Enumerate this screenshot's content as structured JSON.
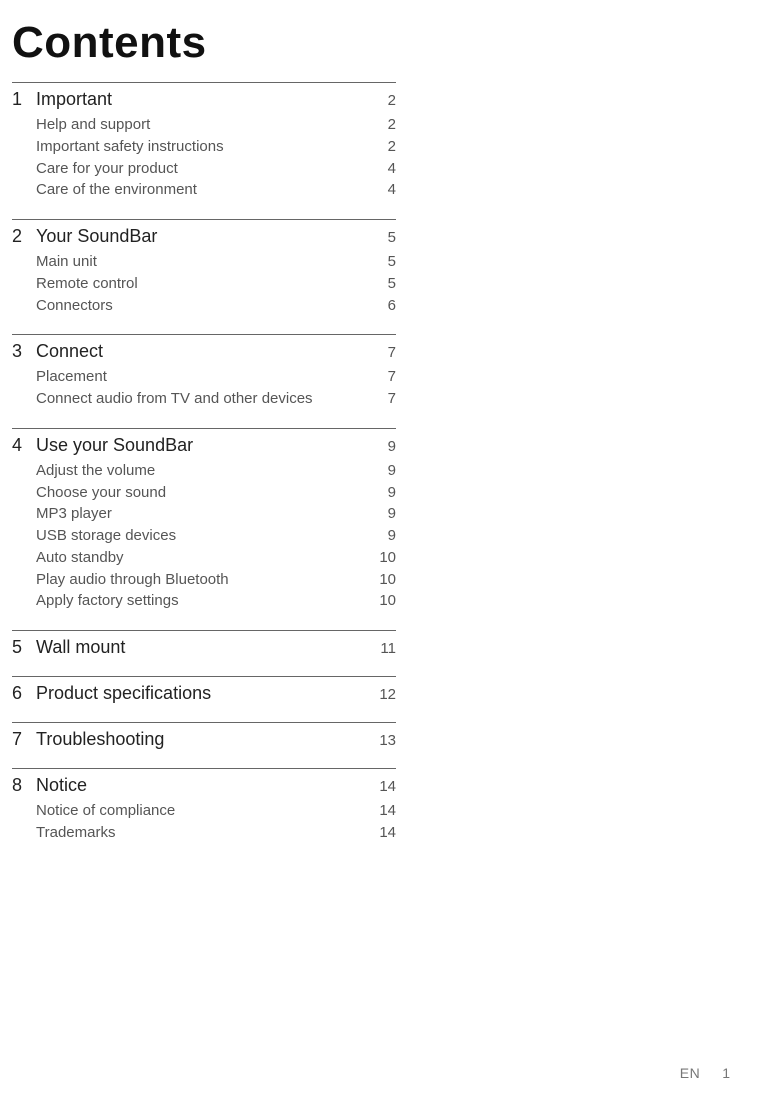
{
  "title": "Contents",
  "footer": {
    "lang": "EN",
    "page": "1"
  },
  "sections": [
    {
      "num": "1",
      "title": "Important",
      "page": "2",
      "subs": [
        {
          "title": "Help and support",
          "page": "2"
        },
        {
          "title": "Important safety instructions",
          "page": "2"
        },
        {
          "title": "Care for your product",
          "page": "4"
        },
        {
          "title": "Care of the environment",
          "page": "4"
        }
      ]
    },
    {
      "num": "2",
      "title": "Your SoundBar",
      "page": "5",
      "subs": [
        {
          "title": "Main unit",
          "page": "5"
        },
        {
          "title": "Remote control",
          "page": "5"
        },
        {
          "title": "Connectors",
          "page": "6"
        }
      ]
    },
    {
      "num": "3",
      "title": "Connect",
      "page": "7",
      "subs": [
        {
          "title": "Placement",
          "page": "7"
        },
        {
          "title": "Connect audio from TV and other devices",
          "page": "7"
        }
      ]
    },
    {
      "num": "4",
      "title": "Use your SoundBar",
      "page": "9",
      "subs": [
        {
          "title": "Adjust the volume",
          "page": "9"
        },
        {
          "title": "Choose your sound",
          "page": "9"
        },
        {
          "title": "MP3 player",
          "page": "9"
        },
        {
          "title": "USB storage devices",
          "page": "9"
        },
        {
          "title": "Auto standby",
          "page": "10"
        },
        {
          "title": "Play audio through Bluetooth",
          "page": "10"
        },
        {
          "title": "Apply factory settings",
          "page": "10"
        }
      ]
    },
    {
      "num": "5",
      "title": "Wall mount",
      "page": "11",
      "subs": []
    },
    {
      "num": "6",
      "title": "Product specifications",
      "page": "12",
      "subs": []
    },
    {
      "num": "7",
      "title": "Troubleshooting",
      "page": "13",
      "subs": []
    },
    {
      "num": "8",
      "title": "Notice",
      "page": "14",
      "subs": [
        {
          "title": "Notice of compliance",
          "page": "14"
        },
        {
          "title": "Trademarks",
          "page": "14"
        }
      ]
    }
  ]
}
